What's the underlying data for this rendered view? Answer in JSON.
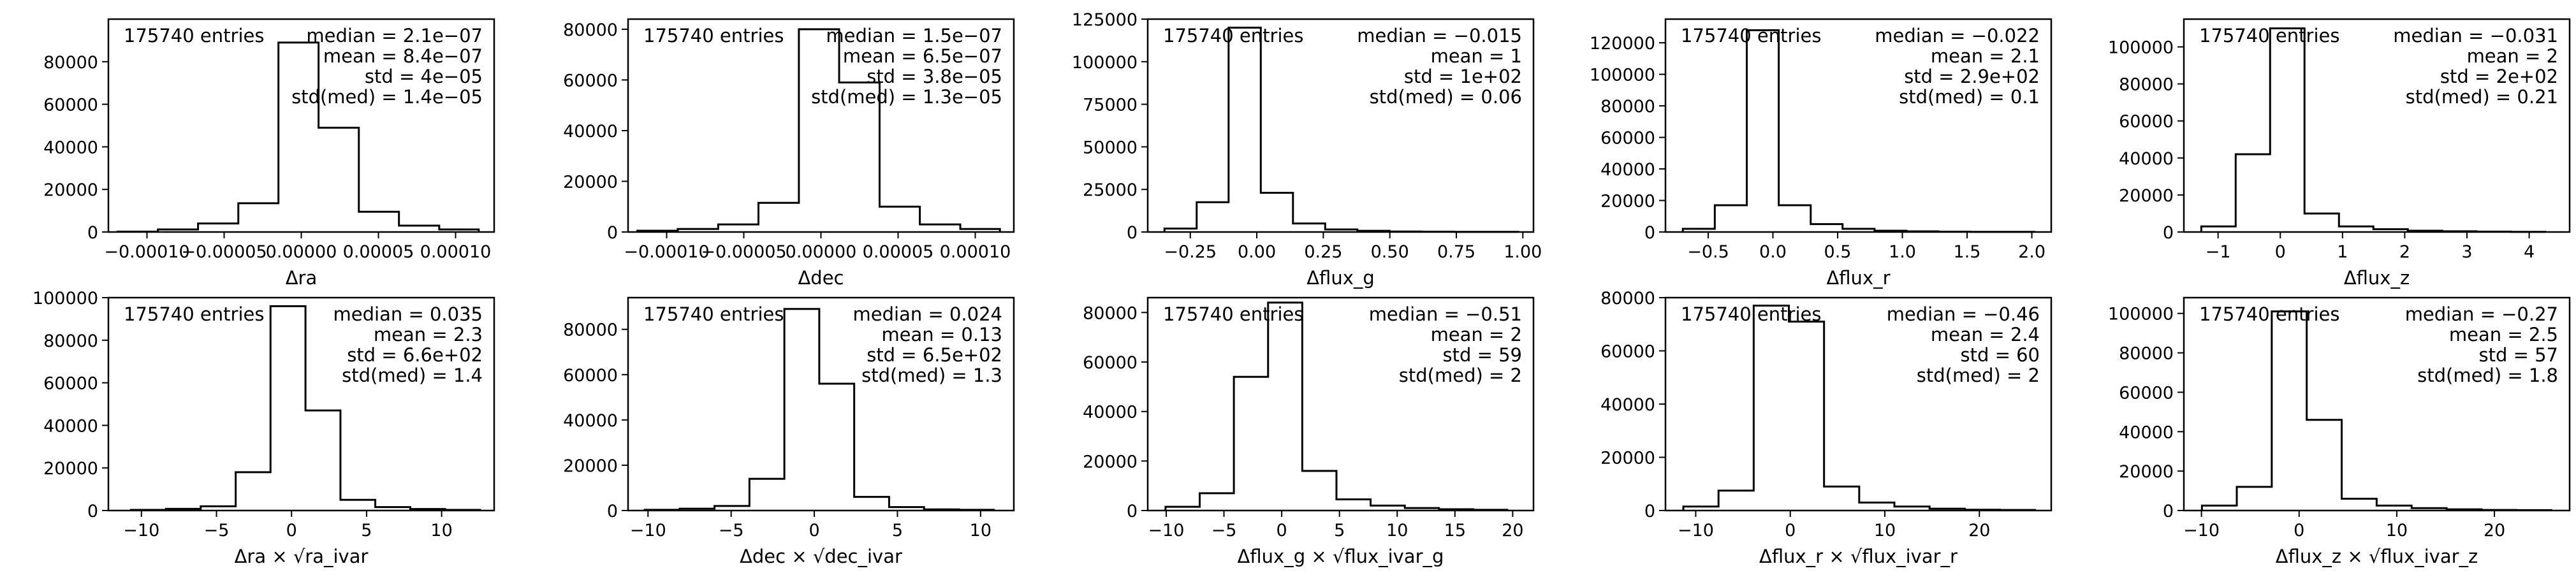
{
  "figure": {
    "background": "#ffffff",
    "line_color": "#000000"
  },
  "chart_data": [
    {
      "type": "histogram",
      "xlabel": "Δra",
      "entries": "175740 entries",
      "stats": [
        "median = 2.1e−07",
        "mean = 8.4e−07",
        "std = 4e−05",
        "std(med) = 1.4e−05"
      ],
      "xlim": [
        -0.000125,
        0.000125
      ],
      "ylim": [
        0,
        100000
      ],
      "xticks": [
        -0.0001,
        -5e-05,
        0,
        5e-05,
        0.0001
      ],
      "xtick_labels": [
        "−0.00010",
        "−0.00005",
        "0.00000",
        "0.00005",
        "0.00010"
      ],
      "yticks": [
        0,
        20000,
        40000,
        60000,
        80000
      ],
      "ytick_labels": [
        "0",
        "20000",
        "40000",
        "60000",
        "80000"
      ],
      "bin_edges": [
        -0.000119,
        -9.29e-05,
        -6.69e-05,
        -4.08e-05,
        -1.48e-05,
        1.12e-05,
        3.73e-05,
        6.33e-05,
        8.94e-05,
        0.000115
      ],
      "counts": [
        200,
        1200,
        4000,
        13500,
        89000,
        49000,
        9500,
        3000,
        1200
      ]
    },
    {
      "type": "histogram",
      "xlabel": "Δdec",
      "entries": "175740 entries",
      "stats": [
        "median = 1.5e−07",
        "mean = 6.5e−07",
        "std = 3.8e−05",
        "std(med) = 1.3e−05"
      ],
      "xlim": [
        -0.000125,
        0.000125
      ],
      "ylim": [
        0,
        84000
      ],
      "xticks": [
        -0.0001,
        -5e-05,
        0,
        5e-05,
        0.0001
      ],
      "xtick_labels": [
        "−0.00010",
        "−0.00005",
        "0.00000",
        "0.00005",
        "0.00010"
      ],
      "yticks": [
        0,
        20000,
        40000,
        60000,
        80000
      ],
      "ytick_labels": [
        "0",
        "20000",
        "40000",
        "60000",
        "80000"
      ],
      "bin_edges": [
        -0.000119,
        -9.28e-05,
        -6.66e-05,
        -4.05e-05,
        -1.43e-05,
        1.18e-05,
        3.8e-05,
        6.41e-05,
        9.03e-05,
        0.000116
      ],
      "counts": [
        500,
        1200,
        3000,
        11500,
        80000,
        59000,
        10000,
        3000,
        1200
      ]
    },
    {
      "type": "histogram",
      "xlabel": "Δflux_g",
      "entries": "175740 entries",
      "stats": [
        "median = −0.015",
        "mean = 1",
        "std = 1e+02",
        "std(med) = 0.06"
      ],
      "xlim": [
        -0.41,
        1.04
      ],
      "ylim": [
        0,
        125000
      ],
      "xticks": [
        -0.25,
        0,
        0.25,
        0.5,
        0.75,
        1
      ],
      "xtick_labels": [
        "−0.25",
        "0.00",
        "0.25",
        "0.50",
        "0.75",
        "1.00"
      ],
      "yticks": [
        0,
        25000,
        50000,
        75000,
        100000,
        125000
      ],
      "ytick_labels": [
        "0",
        "25000",
        "50000",
        "75000",
        "100000",
        "125000"
      ],
      "bin_edges": [
        -0.347,
        -0.226,
        -0.106,
        0.015,
        0.136,
        0.257,
        0.378,
        0.499,
        0.62,
        0.741,
        0.862,
        0.983
      ],
      "counts": [
        2000,
        17500,
        120000,
        23000,
        5000,
        1500,
        700,
        300,
        200,
        100,
        100
      ]
    },
    {
      "type": "histogram",
      "xlabel": "Δflux_r",
      "entries": "175740 entries",
      "stats": [
        "median = −0.022",
        "mean = 2.1",
        "std = 2.9e+02",
        "std(med) = 0.1"
      ],
      "xlim": [
        -0.83,
        2.15
      ],
      "ylim": [
        0,
        135000
      ],
      "xticks": [
        -0.5,
        0,
        0.5,
        1,
        1.5,
        2
      ],
      "xtick_labels": [
        "−0.5",
        "0.0",
        "0.5",
        "1.0",
        "1.5",
        "2.0"
      ],
      "yticks": [
        0,
        20000,
        40000,
        60000,
        80000,
        100000,
        120000
      ],
      "ytick_labels": [
        "0",
        "20000",
        "40000",
        "60000",
        "80000",
        "100000",
        "120000"
      ],
      "bin_edges": [
        -0.696,
        -0.449,
        -0.202,
        0.045,
        0.292,
        0.538,
        0.785,
        1.032,
        1.279,
        1.526,
        1.773,
        2.02
      ],
      "counts": [
        2000,
        17000,
        128000,
        17000,
        5000,
        2000,
        800,
        400,
        200,
        100,
        100
      ]
    },
    {
      "type": "histogram",
      "xlabel": "Δflux_z",
      "entries": "175740 entries",
      "stats": [
        "median = −0.031",
        "mean = 2",
        "std = 2e+02",
        "std(med) = 0.21"
      ],
      "xlim": [
        -1.55,
        4.65
      ],
      "ylim": [
        0,
        115000
      ],
      "xticks": [
        -1,
        0,
        1,
        2,
        3,
        4
      ],
      "xtick_labels": [
        "−1",
        "0",
        "1",
        "2",
        "3",
        "4"
      ],
      "yticks": [
        0,
        20000,
        40000,
        60000,
        80000,
        100000
      ],
      "ytick_labels": [
        "0",
        "20000",
        "40000",
        "60000",
        "80000",
        "100000"
      ],
      "bin_edges": [
        -1.27,
        -0.717,
        -0.164,
        0.389,
        0.943,
        1.496,
        2.049,
        2.602,
        3.155,
        3.709,
        4.262
      ],
      "counts": [
        3000,
        42000,
        110000,
        10000,
        3000,
        1500,
        700,
        400,
        200,
        100
      ]
    },
    {
      "type": "histogram",
      "xlabel": "Δra × √ra_ivar",
      "entries": "175740 entries",
      "stats": [
        "median = 0.035",
        "mean = 2.3",
        "std = 6.6e+02",
        "std(med) = 1.4"
      ],
      "xlim": [
        -12.2,
        13.5
      ],
      "ylim": [
        0,
        100000
      ],
      "xticks": [
        -10,
        -5,
        0,
        5,
        10
      ],
      "xtick_labels": [
        "−10",
        "−5",
        "0",
        "5",
        "10"
      ],
      "yticks": [
        0,
        20000,
        40000,
        60000,
        80000,
        100000
      ],
      "ytick_labels": [
        "0",
        "20000",
        "40000",
        "60000",
        "80000",
        "100000"
      ],
      "bin_edges": [
        -10.7,
        -8.37,
        -6.05,
        -3.72,
        -1.4,
        0.93,
        3.26,
        5.58,
        7.91,
        10.23,
        12.56
      ],
      "counts": [
        300,
        800,
        2000,
        18000,
        96000,
        47000,
        5000,
        1600,
        700,
        300
      ]
    },
    {
      "type": "histogram",
      "xlabel": "Δdec × √dec_ivar",
      "entries": "175740 entries",
      "stats": [
        "median = 0.024",
        "mean = 0.13",
        "std = 6.5e+02",
        "std(med) = 1.3"
      ],
      "xlim": [
        -11.2,
        12.0
      ],
      "ylim": [
        0,
        94000
      ],
      "xticks": [
        -10,
        -5,
        0,
        5,
        10
      ],
      "xtick_labels": [
        "−10",
        "−5",
        "0",
        "5",
        "10"
      ],
      "yticks": [
        0,
        20000,
        40000,
        60000,
        80000
      ],
      "ytick_labels": [
        "0",
        "20000",
        "40000",
        "60000",
        "80000"
      ],
      "bin_edges": [
        -10.2,
        -8.1,
        -6.0,
        -3.9,
        -1.8,
        0.3,
        2.4,
        4.5,
        6.6,
        8.7,
        10.8
      ],
      "counts": [
        300,
        800,
        2000,
        14000,
        89000,
        56000,
        6000,
        1500,
        500,
        300
      ]
    },
    {
      "type": "histogram",
      "xlabel": "Δflux_g × √flux_ivar_g",
      "entries": "175740 entries",
      "stats": [
        "median = −0.51",
        "mean = 2",
        "std = 59",
        "std(med) = 2"
      ],
      "xlim": [
        -11.6,
        21.8
      ],
      "ylim": [
        0,
        86000
      ],
      "xticks": [
        -10,
        -5,
        0,
        5,
        10,
        15,
        20
      ],
      "xtick_labels": [
        "−10",
        "−5",
        "0",
        "5",
        "10",
        "15",
        "20"
      ],
      "yticks": [
        0,
        20000,
        40000,
        60000,
        80000
      ],
      "ytick_labels": [
        "0",
        "20000",
        "40000",
        "60000",
        "80000"
      ],
      "bin_edges": [
        -10.06,
        -7.1,
        -4.14,
        -1.18,
        1.78,
        4.74,
        7.7,
        10.66,
        13.62,
        16.58,
        19.54
      ],
      "counts": [
        1500,
        7000,
        54000,
        84000,
        16000,
        4500,
        2000,
        1000,
        500,
        300
      ]
    },
    {
      "type": "histogram",
      "xlabel": "Δflux_r × √flux_ivar_r",
      "entries": "175740 entries",
      "stats": [
        "median = −0.46",
        "mean = 2.4",
        "std = 60",
        "std(med) = 2"
      ],
      "xlim": [
        -13.2,
        27.6
      ],
      "ylim": [
        0,
        80000
      ],
      "xticks": [
        -10,
        0,
        10,
        20
      ],
      "xtick_labels": [
        "−10",
        "0",
        "10",
        "20"
      ],
      "yticks": [
        0,
        20000,
        40000,
        60000,
        80000
      ],
      "ytick_labels": [
        "0",
        "20000",
        "40000",
        "60000",
        "80000"
      ],
      "bin_edges": [
        -11.31,
        -7.59,
        -3.87,
        -0.15,
        3.57,
        7.29,
        11.01,
        14.73,
        18.45,
        22.17,
        25.89
      ],
      "counts": [
        1500,
        7500,
        77000,
        71000,
        9000,
        3000,
        1500,
        700,
        300,
        200
      ]
    },
    {
      "type": "histogram",
      "xlabel": "Δflux_z × √flux_ivar_z",
      "entries": "175740 entries",
      "stats": [
        "median = −0.27",
        "mean = 2.5",
        "std = 57",
        "std(med) = 1.8"
      ],
      "xlim": [
        -11.8,
        27.7
      ],
      "ylim": [
        0,
        108000
      ],
      "xticks": [
        -10,
        0,
        10,
        20
      ],
      "xtick_labels": [
        "−10",
        "0",
        "10",
        "20"
      ],
      "bin_edges": [
        -9.95,
        -6.38,
        -2.8,
        0.78,
        4.36,
        7.94,
        11.52,
        15.1,
        18.68,
        22.26,
        25.84
      ],
      "yticks": [
        0,
        20000,
        40000,
        60000,
        80000,
        100000
      ],
      "ytick_labels": [
        "0",
        "20000",
        "40000",
        "60000",
        "80000",
        "100000"
      ],
      "counts": [
        2500,
        12000,
        101000,
        46000,
        6000,
        2500,
        1200,
        600,
        300,
        200
      ]
    }
  ]
}
